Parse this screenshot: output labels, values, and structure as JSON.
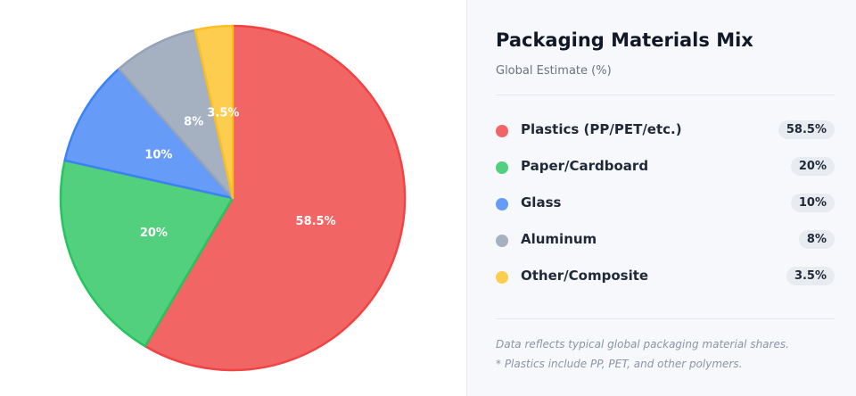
{
  "chart_data": {
    "type": "pie",
    "title": "Packaging Materials Mix",
    "subtitle": "Global Estimate (%)",
    "slices": [
      {
        "label": "Plastics (PP/PET/etc.)",
        "value": 58.5,
        "display": "58.5%",
        "slice_label": "58.5%",
        "color": "#f26565",
        "stroke": "#ef4444"
      },
      {
        "label": "Paper/Cardboard",
        "value": 20,
        "display": "20%",
        "slice_label": "20%",
        "color": "#52d07e",
        "stroke": "#22c55e"
      },
      {
        "label": "Glass",
        "value": 10,
        "display": "10%",
        "slice_label": "10%",
        "color": "#679bf8",
        "stroke": "#3b82f6"
      },
      {
        "label": "Aluminum",
        "value": 8,
        "display": "8%",
        "slice_label": "8%",
        "color": "#a5b0c0",
        "stroke": "#94a3b8"
      },
      {
        "label": "Other/Composite",
        "value": 3.5,
        "display": "3.5%",
        "slice_label": "3.5%",
        "color": "#fdcd4f",
        "stroke": "#fbbf24"
      }
    ],
    "legend_position": "right"
  },
  "panel": {
    "title": "Packaging Materials Mix",
    "subtitle": "Global Estimate (%)",
    "notes": [
      "Data reflects typical global packaging material shares.",
      "* Plastics include PP, PET, and other polymers."
    ]
  }
}
